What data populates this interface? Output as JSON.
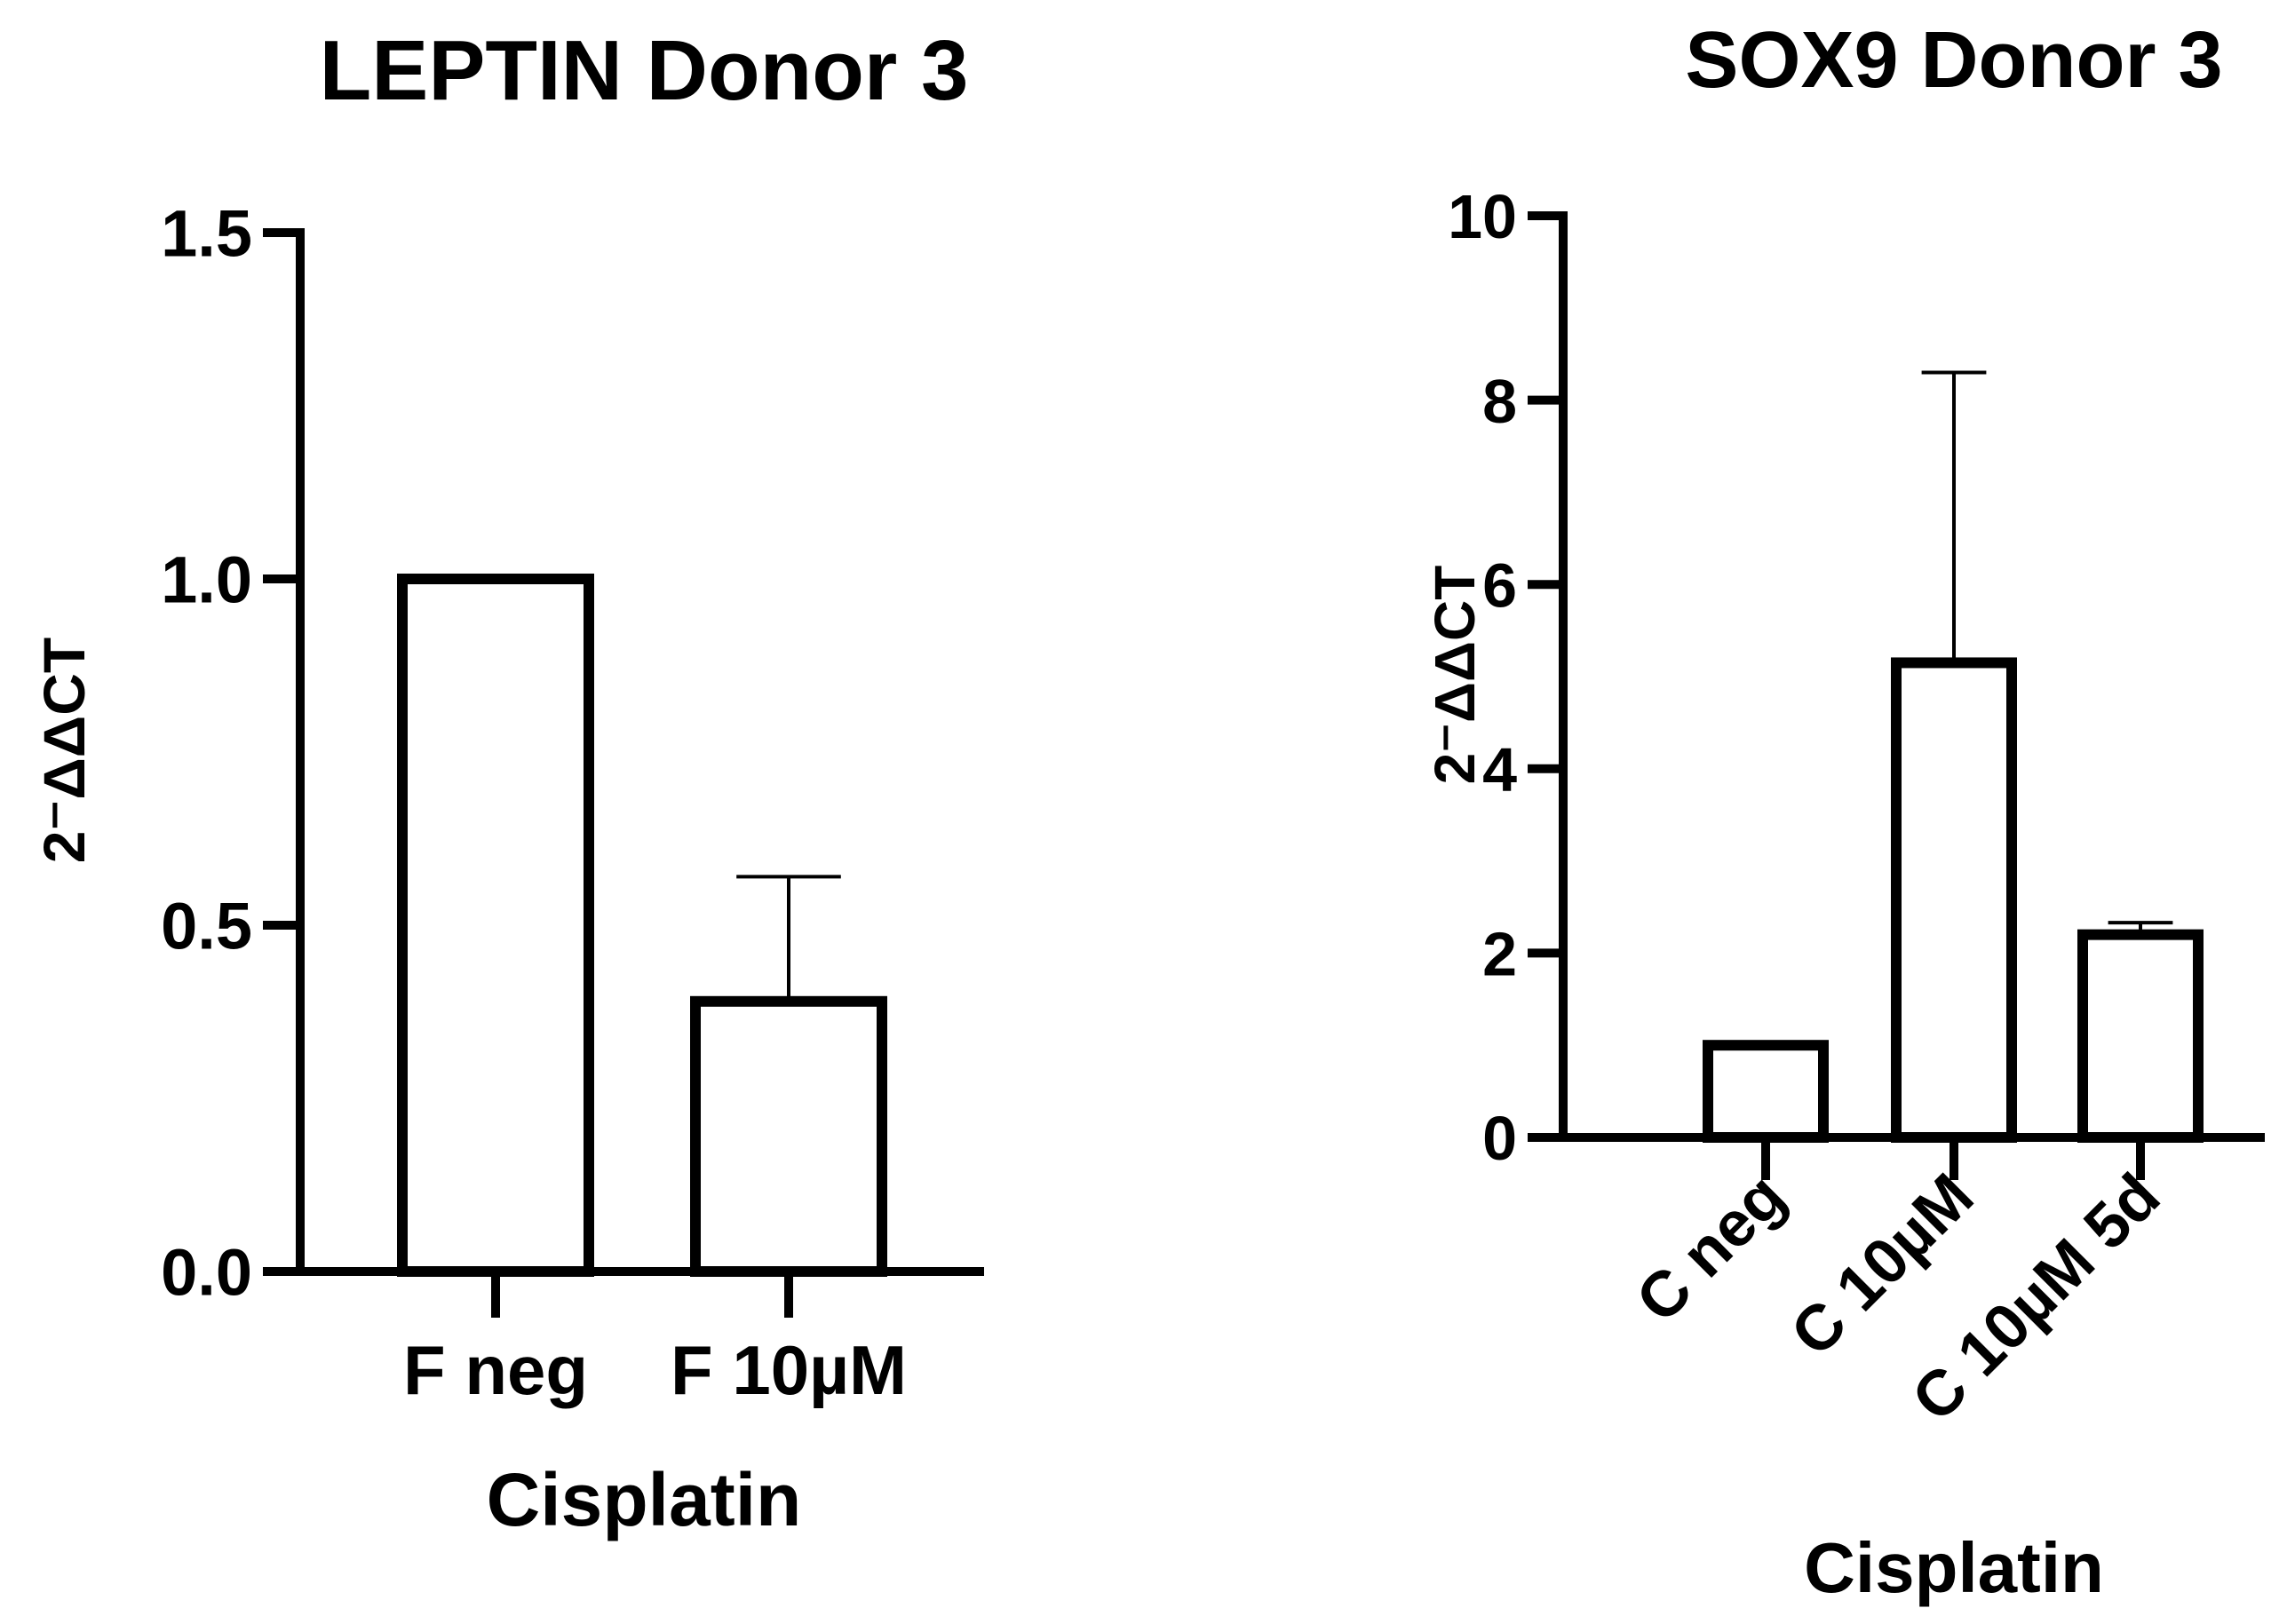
{
  "chart_data": [
    {
      "type": "bar",
      "title": "LEPTIN Donor 3",
      "xlabel": "Cisplatin",
      "ylabel": "2⁻ΔΔCT",
      "categories": [
        "F neg",
        "F 10µM"
      ],
      "values": [
        1.0,
        0.39
      ],
      "error_upper": [
        null,
        0.57
      ],
      "ylim": [
        0,
        1.5
      ],
      "yticks": [
        "0.0",
        "0.5",
        "1.0",
        "1.5"
      ],
      "ytick_values": [
        0,
        0.5,
        1.0,
        1.5
      ],
      "grid": false
    },
    {
      "type": "bar",
      "title": "SOX9 Donor 3",
      "xlabel": "Cisplatin",
      "ylabel": "2⁻ΔΔCT",
      "categories": [
        "C neg",
        "C 10µM",
        "C 10µM 5d"
      ],
      "values": [
        1.0,
        5.15,
        2.2
      ],
      "error_upper": [
        null,
        8.3,
        2.33
      ],
      "ylim": [
        0,
        10
      ],
      "yticks": [
        "0",
        "2",
        "4",
        "6",
        "8",
        "10"
      ],
      "ytick_values": [
        0,
        2,
        4,
        6,
        8,
        10
      ],
      "grid": false
    }
  ]
}
